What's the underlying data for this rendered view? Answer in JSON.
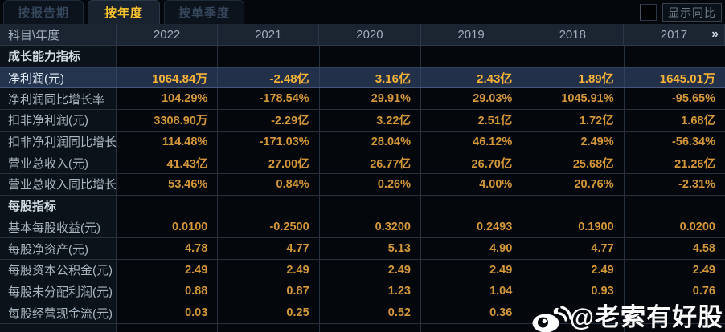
{
  "tabs": [
    {
      "label": "按报告期",
      "active": false
    },
    {
      "label": "按年度",
      "active": true
    },
    {
      "label": "按单季度",
      "active": false
    }
  ],
  "controls": {
    "show_yoy_label": "显示同比",
    "checkbox_checked": false
  },
  "table": {
    "corner_label": "科目\\年度",
    "years": [
      "2022",
      "2021",
      "2020",
      "2019",
      "2018",
      "2017"
    ],
    "more_icon": "»",
    "rows": [
      {
        "type": "section",
        "label": "成长能力指标",
        "values": [
          "",
          "",
          "",
          "",
          "",
          ""
        ]
      },
      {
        "type": "highlight",
        "label": "净利润(元)",
        "values": [
          "1064.84万",
          "-2.48亿",
          "3.16亿",
          "2.43亿",
          "1.89亿",
          "1645.01万"
        ]
      },
      {
        "type": "data",
        "label": "净利润同比增长率",
        "values": [
          "104.29%",
          "-178.54%",
          "29.91%",
          "29.03%",
          "1045.91%",
          "-95.65%"
        ]
      },
      {
        "type": "data",
        "label": "扣非净利润(元)",
        "values": [
          "3308.90万",
          "-2.29亿",
          "3.22亿",
          "2.51亿",
          "1.72亿",
          "1.68亿"
        ]
      },
      {
        "type": "data",
        "label": "扣非净利润同比增长率",
        "values": [
          "114.48%",
          "-171.03%",
          "28.04%",
          "46.12%",
          "2.49%",
          "-56.34%"
        ]
      },
      {
        "type": "data",
        "label": "营业总收入(元)",
        "values": [
          "41.43亿",
          "27.00亿",
          "26.77亿",
          "26.70亿",
          "25.68亿",
          "21.26亿"
        ]
      },
      {
        "type": "data",
        "label": "营业总收入同比增长率",
        "values": [
          "53.46%",
          "0.84%",
          "0.26%",
          "4.00%",
          "20.76%",
          "-2.31%"
        ]
      },
      {
        "type": "section",
        "label": "每股指标",
        "values": [
          "",
          "",
          "",
          "",
          "",
          ""
        ]
      },
      {
        "type": "data",
        "label": "基本每股收益(元)",
        "values": [
          "0.0100",
          "-0.2500",
          "0.3200",
          "0.2493",
          "0.1900",
          "0.0200"
        ]
      },
      {
        "type": "data",
        "label": "每股净资产(元)",
        "values": [
          "4.78",
          "4.77",
          "5.13",
          "4.90",
          "4.77",
          "4.58"
        ]
      },
      {
        "type": "data",
        "label": "每股资本公积金(元)",
        "values": [
          "2.49",
          "2.49",
          "2.49",
          "2.49",
          "2.49",
          "2.49"
        ]
      },
      {
        "type": "data",
        "label": "每股未分配利润(元)",
        "values": [
          "0.88",
          "0.87",
          "1.23",
          "1.04",
          "0.93",
          "0.76"
        ]
      },
      {
        "type": "data",
        "label": "每股经营现金流(元)",
        "values": [
          "0.03",
          "0.25",
          "0.52",
          "0.36",
          "",
          ""
        ]
      }
    ]
  },
  "watermark": {
    "icon": "weibo-icon",
    "handle": "@老索有好股"
  },
  "colors": {
    "background": "#04070b",
    "header_bg": "#1b2531",
    "highlight_row_bg": "#22304a",
    "value_gold": "#d4973b",
    "highlight_gold": "#f6b239",
    "active_tab_text": "#fcc42c",
    "label_gray": "#a9b5c0",
    "grid_line": "#27313d"
  }
}
